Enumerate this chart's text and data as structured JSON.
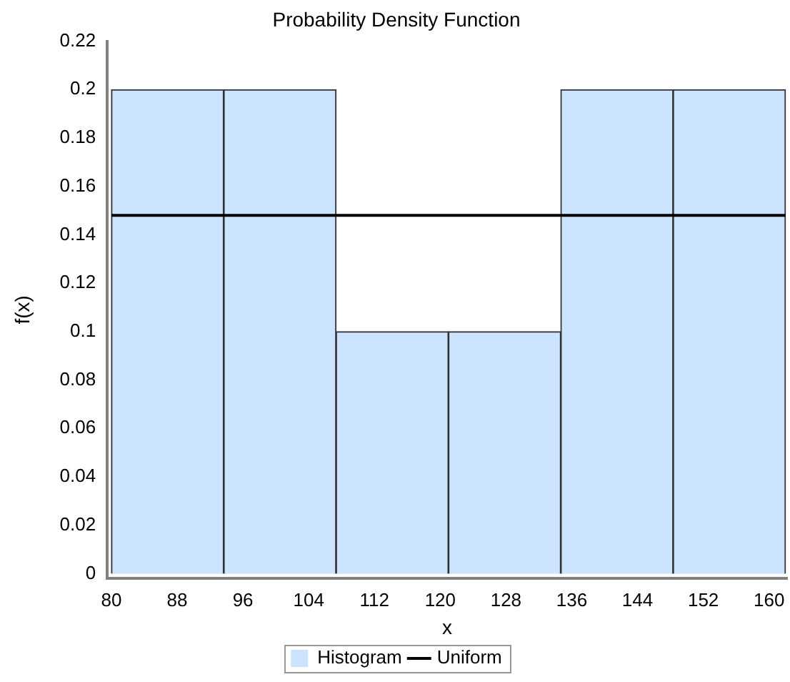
{
  "chart_data": {
    "type": "histogram",
    "title": "Probability Density Function",
    "xlabel": "x",
    "ylabel": "f(x)",
    "bins": [
      80,
      93.67,
      107.33,
      121,
      134.67,
      148.33,
      162
    ],
    "series": [
      {
        "name": "Histogram",
        "type": "histogram",
        "color": "#cce4ff",
        "values": [
          0.2,
          0.2,
          0.1,
          0.1,
          0.2,
          0.2
        ]
      },
      {
        "name": "Uniform",
        "type": "line",
        "color": "#000000",
        "x": [
          80,
          162
        ],
        "values": [
          0.148,
          0.148
        ]
      }
    ],
    "xlim": [
      79.5,
      162.2
    ],
    "xticks": [
      80,
      88,
      96,
      104,
      112,
      120,
      128,
      136,
      144,
      152,
      160
    ],
    "ylim": [
      -0.002,
      0.22
    ],
    "yticks": [
      0,
      0.02,
      0.04,
      0.06,
      0.08,
      0.1,
      0.12,
      0.14,
      0.16,
      0.18,
      0.2,
      0.22
    ],
    "legend": "bottom",
    "marker": "none",
    "line_style": "solid"
  }
}
